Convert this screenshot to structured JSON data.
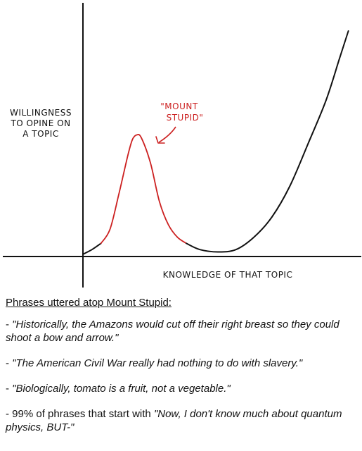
{
  "chart_data": {
    "type": "line",
    "ylabel": [
      "WILLINGNESS",
      "TO OPINE ON",
      "A TOPIC"
    ],
    "xlabel": "KNOWLEDGE OF THAT TOPIC",
    "annotation": [
      "\"MOUNT",
      "STUPID\""
    ],
    "colors": {
      "peak_segment": "#cc2020",
      "curve": "#111111",
      "axes": "#111111"
    },
    "series": [
      {
        "segments": [
          {
            "color": "black",
            "points": [
              [
                0,
                1
              ],
              [
                2,
                4
              ],
              [
                4,
                8
              ]
            ]
          },
          {
            "color": "red",
            "points": [
              [
                4,
                8
              ],
              [
                6,
                17
              ],
              [
                8,
                40
              ],
              [
                10,
                65
              ],
              [
                11,
                75
              ],
              [
                12,
                78
              ],
              [
                13,
                76
              ],
              [
                15,
                60
              ],
              [
                17,
                35
              ],
              [
                19,
                20
              ],
              [
                21,
                12
              ],
              [
                23,
                8
              ]
            ]
          },
          {
            "color": "black",
            "points": [
              [
                23,
                8
              ],
              [
                26,
                4
              ],
              [
                30,
                2.5
              ],
              [
                34,
                4
              ],
              [
                38,
                12
              ],
              [
                42,
                25
              ],
              [
                46,
                45
              ],
              [
                50,
                72
              ],
              [
                54,
                100
              ],
              [
                57,
                127
              ],
              [
                59,
                145
              ]
            ]
          }
        ]
      }
    ]
  },
  "caption": {
    "heading": "Phrases uttered atop Mount Stupid:",
    "items": [
      {
        "prefix": "- ",
        "quote": "\"Historically, the Amazons would cut off their right breast so they could shoot a bow and arrow.\"",
        "suffix": ""
      },
      {
        "prefix": "- ",
        "quote": "\"The American Civil War really had nothing to do with slavery.\"",
        "suffix": ""
      },
      {
        "prefix": "- ",
        "quote": "\"Biologically, tomato is a fruit, not a vegetable.\"",
        "suffix": ""
      },
      {
        "prefix": "- 99% of phrases that start with ",
        "quote": "\"Now, I don't know much about quantum physics, BUT-\"",
        "suffix": ""
      }
    ]
  }
}
